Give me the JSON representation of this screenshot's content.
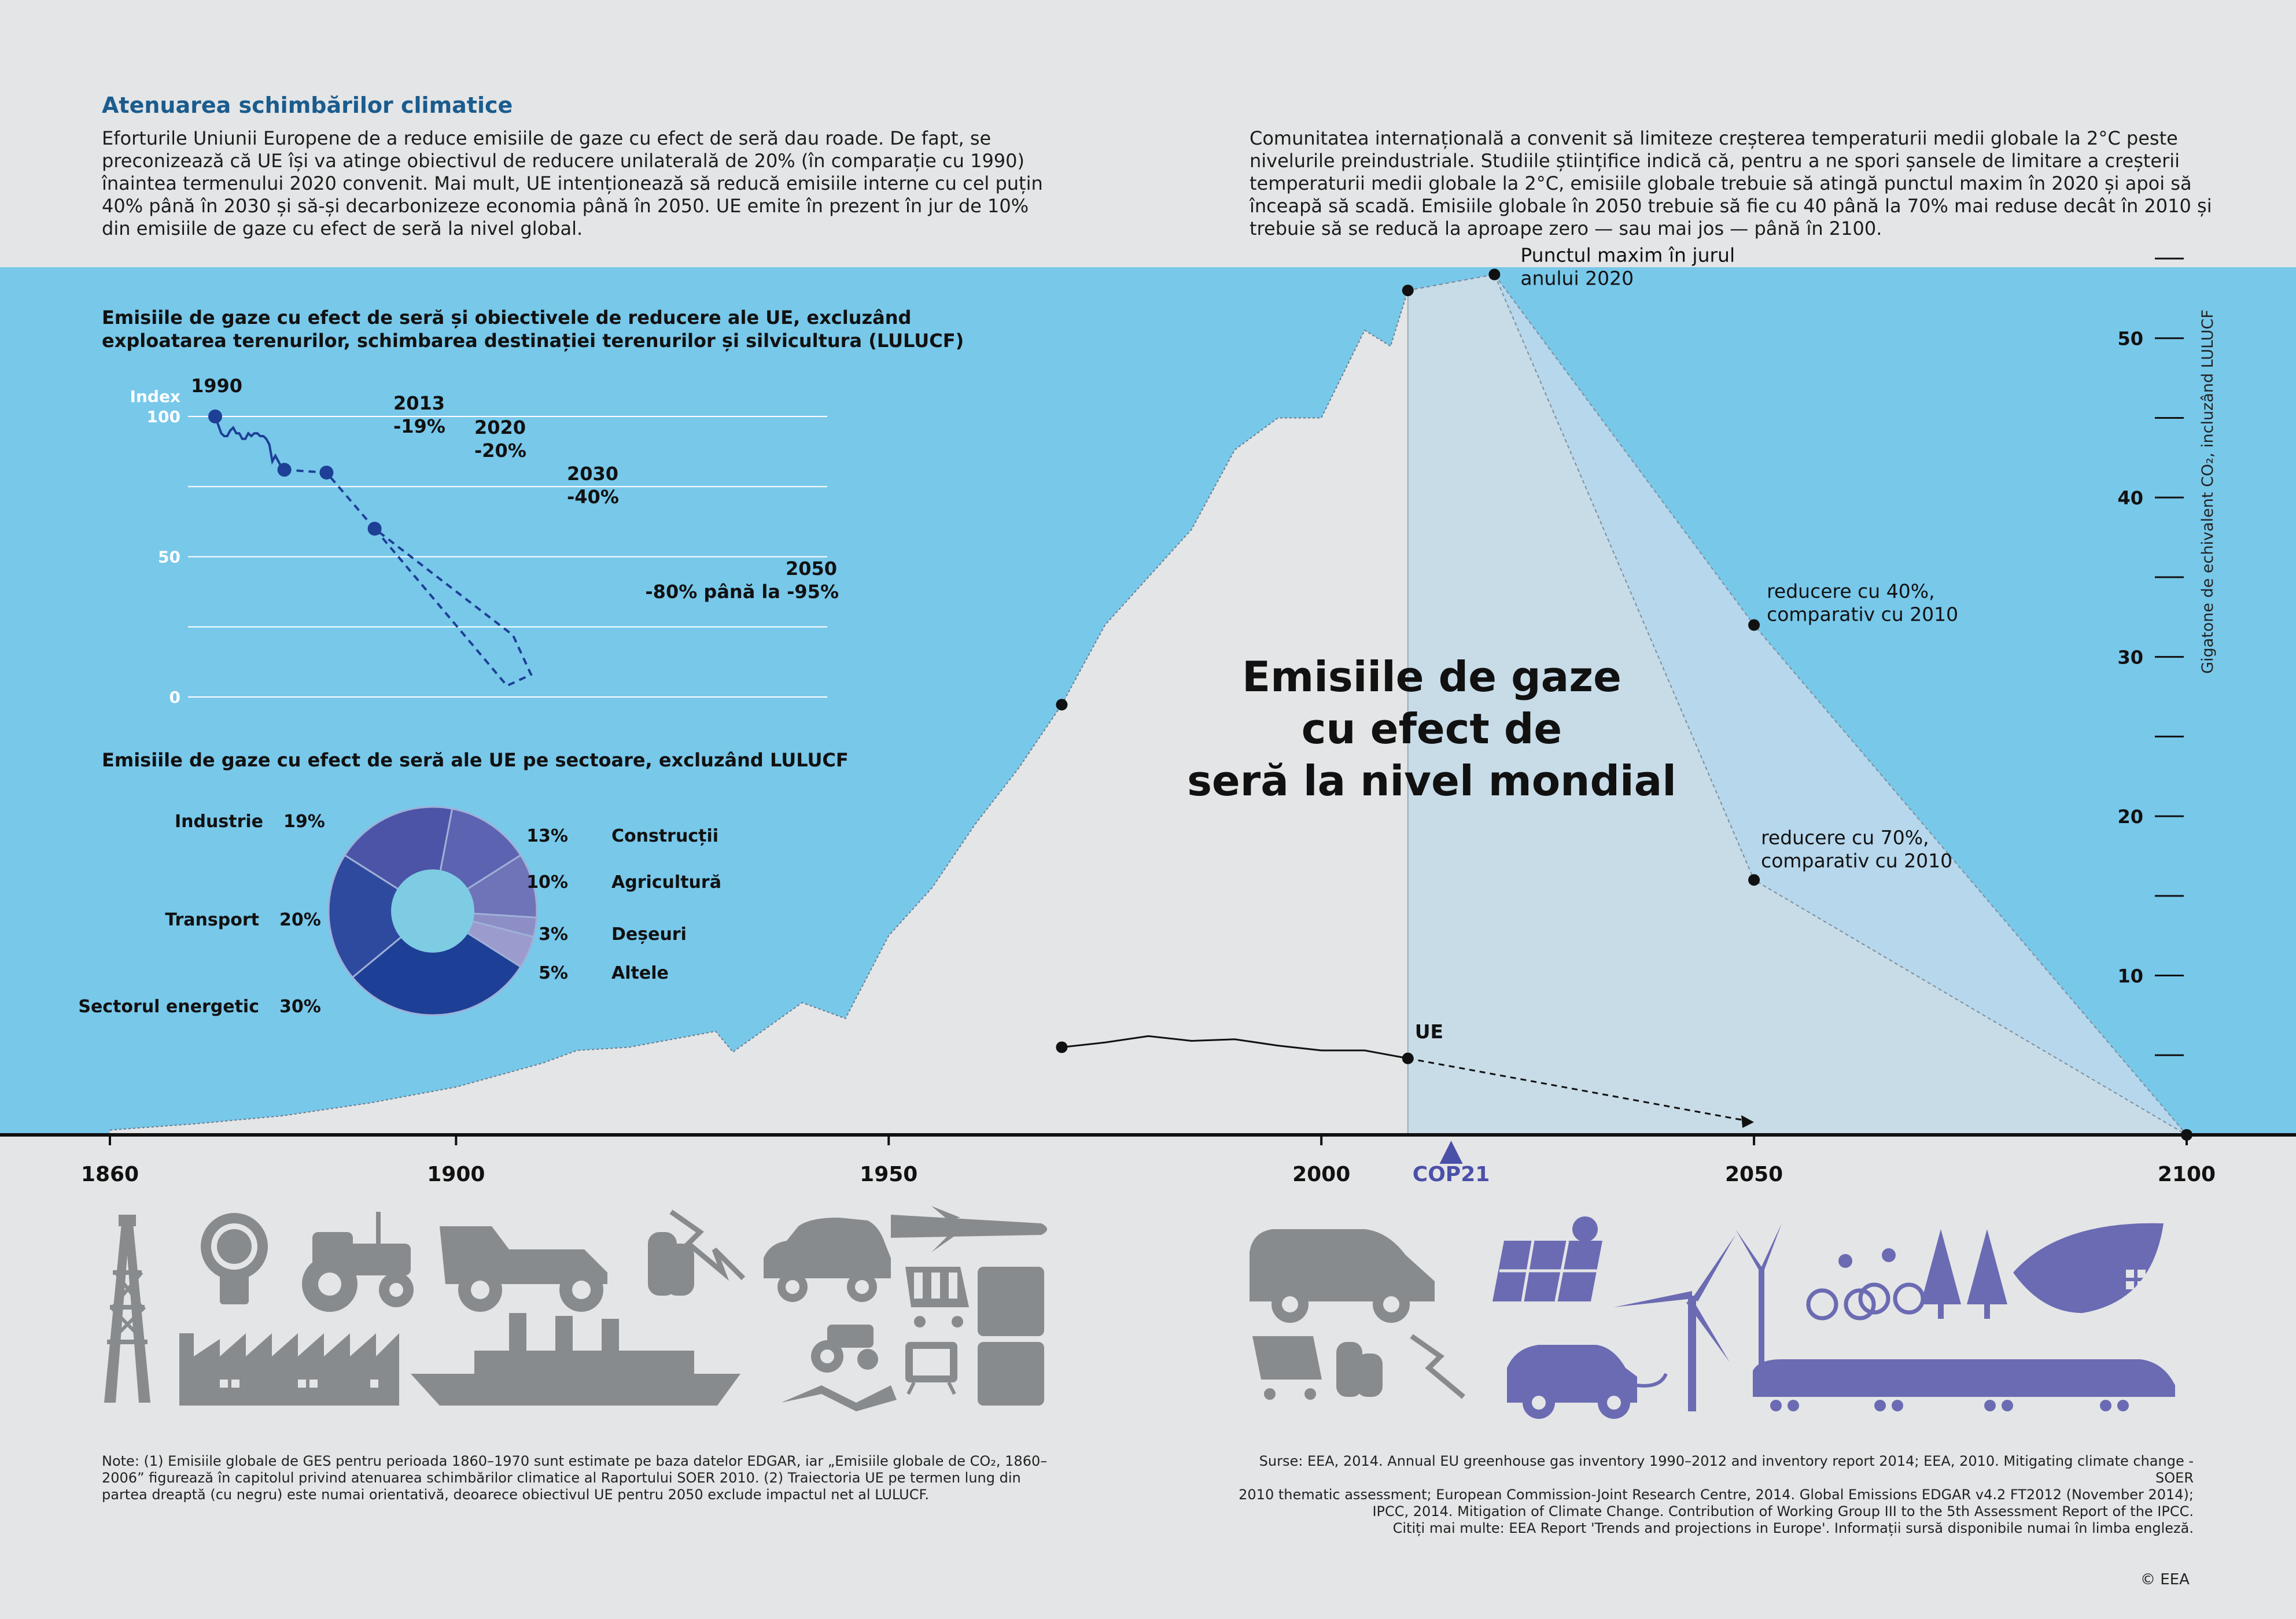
{
  "header": {
    "title": "Atenuarea schimbărilor climatice",
    "intro_left": "Eforturile Uniunii Europene de a reduce emisiile de gaze cu efect de seră dau roade. De fapt, se preconizează că UE își va atinge obiectivul de reducere unilaterală de 20% (în comparație cu 1990) înaintea termenului 2020 convenit. Mai mult, UE intenționează să reducă emisiile interne cu cel puțin 40% până în 2030 și să-și decarbonizeze economia până în 2050. UE emite în prezent în jur de 10% din emisiile de gaze cu efect de seră la nivel global.",
    "intro_right": "Comunitatea internațională a convenit să limiteze creșterea temperaturii medii globale la 2°C peste nivelurile preindustriale. Studiile științifice indică că, pentru a ne spori șansele de limitare a creșterii temperaturii medii globale la 2°C, emisiile globale trebuie să atingă punctul maxim în 2020 și apoi să înceapă să scadă. Emisiile globale în 2050 trebuie să fie cu 40 până la 70% mai reduse decât în 2010 și trebuie să se reducă la aproape zero — sau mai jos — până în 2100."
  },
  "colors": {
    "sky": "#78c8ea",
    "area": "#e4e5e6",
    "projection": "#c8dce8",
    "accent_blue": "#1a5c8e",
    "eu_line": "#1e3f96",
    "cop_purple": "#4a4fa8",
    "icon_grey": "#888b8e",
    "icon_purple": "#6b6bb3"
  },
  "chart_data": [
    {
      "type": "area",
      "title": "Emisiile de gaze cu efect de seră la nivel mondial",
      "ylabel": "Gigatone de echivalent CO₂, incluzând LULUCF",
      "x_ticks": [
        1860,
        1900,
        1950,
        2000,
        2050,
        2100
      ],
      "y_ticks": [
        10,
        20,
        30,
        40,
        50
      ],
      "xlim": [
        1860,
        2100
      ],
      "ylim": [
        0,
        55
      ],
      "global_series": {
        "x": [
          1860,
          1870,
          1880,
          1890,
          1900,
          1910,
          1914,
          1920,
          1930,
          1932,
          1940,
          1945,
          1950,
          1955,
          1960,
          1965,
          1970,
          1975,
          1980,
          1985,
          1990,
          1995,
          2000,
          2005,
          2008,
          2010
        ],
        "y": [
          0.3,
          0.7,
          1.2,
          2.0,
          3.0,
          4.5,
          5.3,
          5.5,
          6.5,
          5.2,
          8.3,
          7.3,
          12.5,
          15.5,
          19.5,
          23.0,
          27.0,
          32.0,
          35.0,
          38.0,
          43.0,
          45.0,
          45.0,
          50.5,
          49.5,
          53.0
        ]
      },
      "projection_2100": {
        "x": [
          2010,
          2020,
          2050,
          2100
        ],
        "y_high": [
          53,
          54,
          32,
          0
        ],
        "y_low": [
          53,
          54,
          16,
          0
        ]
      },
      "eu_series": {
        "x": [
          1970,
          1975,
          1980,
          1985,
          1990,
          1995,
          2000,
          2005,
          2010,
          2050
        ],
        "y": [
          5.5,
          5.8,
          6.2,
          5.9,
          6.0,
          5.6,
          5.3,
          5.3,
          4.8,
          0.8
        ]
      },
      "annotations": [
        {
          "x": 2020,
          "y": 54,
          "text": "Punctul maxim în jurul anului 2020"
        },
        {
          "x": 2050,
          "y": 32,
          "text": "reducere cu 40%, comparativ cu 2010"
        },
        {
          "x": 2050,
          "y": 16,
          "text": "reducere cu 70%, comparativ cu 2010"
        },
        {
          "x": 2010,
          "y": 4.8,
          "text": "UE"
        },
        {
          "x": 2015,
          "y": 0,
          "text": "COP21"
        }
      ]
    },
    {
      "type": "line",
      "title": "Emisiile de gaze cu efect de seră și obiectivele de reducere ale UE, excluzând exploatarea terenurilor, schimbarea destinației terenurilor și silvicultura (LULUCF)",
      "ylabel": "Index",
      "y_ticks": [
        0,
        50,
        100
      ],
      "ylim": [
        0,
        100
      ],
      "history": {
        "x": [
          1990,
          1991,
          1992,
          1993,
          1994,
          1995,
          1996,
          1997,
          1998,
          1999,
          2000,
          2001,
          2002,
          2003,
          2004,
          2005,
          2006,
          2007,
          2008,
          2009,
          2010,
          2011,
          2012,
          2013
        ],
        "y": [
          100,
          97,
          94,
          93,
          93,
          95,
          96,
          94,
          94,
          92,
          92,
          94,
          93,
          94,
          94,
          93,
          93,
          92,
          90,
          84,
          86,
          84,
          82,
          81
        ]
      },
      "milestones": [
        {
          "year": "1990",
          "value": 100,
          "label": ""
        },
        {
          "year": "2013",
          "value": 81,
          "label": "-19%"
        },
        {
          "year": "2020",
          "value": 80,
          "label": "-20%"
        },
        {
          "year": "2030",
          "value": 60,
          "label": "-40%"
        },
        {
          "year": "2050",
          "value": 12,
          "label": "-80% până la -95%"
        }
      ]
    },
    {
      "type": "pie",
      "title": "Emisiile de gaze cu efect de seră ale UE pe sectoare, excluzând LULUCF",
      "slices": [
        {
          "name": "Sectorul energetic",
          "value": 30,
          "label": "30%",
          "color": "#1e3f96"
        },
        {
          "name": "Transport",
          "value": 20,
          "label": "20%",
          "color": "#2e4a9e"
        },
        {
          "name": "Industrie",
          "value": 19,
          "label": "19%",
          "color": "#4b54a6"
        },
        {
          "name": "Construcții",
          "value": 13,
          "label": "13%",
          "color": "#5c63b0"
        },
        {
          "name": "Agricultură",
          "value": 10,
          "label": "10%",
          "color": "#6f73b8"
        },
        {
          "name": "Deșeuri",
          "value": 3,
          "label": "3%",
          "color": "#8d8ec6"
        },
        {
          "name": "Altele",
          "value": 5,
          "label": "5%",
          "color": "#9b9ccd"
        }
      ]
    }
  ],
  "icons": {
    "past": [
      "oil-derrick-icon",
      "light-bulb-icon",
      "tractor-icon",
      "vintage-car-icon",
      "coins-icon",
      "airplane-icon",
      "car-icon",
      "shopping-cart-icon",
      "fridge-icon",
      "factory-icon",
      "ship-icon",
      "farming-icon",
      "tv-icon"
    ],
    "future": [
      "car-icon",
      "solar-panel-icon",
      "wind-turbine-icon",
      "cyclists-icon",
      "trees-icon",
      "eco-house-icon",
      "shopping-cart-icon",
      "coins-icon",
      "electric-car-icon",
      "train-icon"
    ]
  },
  "footer": {
    "note": "Note: (1) Emisiile globale de GES pentru perioada 1860–1970 sunt estimate pe baza datelor EDGAR, iar „Emisiile globale de CO₂, 1860–2006” figurează în capitolul privind atenuarea schimbărilor climatice al Raportului SOER 2010. (2) Traiectoria UE pe termen lung din partea dreaptă (cu negru) este numai orientativă, deoarece obiectivul UE pentru 2050 exclude impactul net al LULUCF.",
    "sources_lines": [
      "Surse: EEA, 2014. Annual EU greenhouse gas inventory 1990–2012 and inventory report 2014; EEA, 2010. Mitigating climate change - SOER",
      "2010 thematic assessment; European Commission-Joint Research Centre, 2014. Global Emissions EDGAR v4.2 FT2012 (November 2014);",
      "IPCC, 2014. Mitigation of Climate Change. Contribution of Working Group III to the 5th Assessment Report of the IPCC.",
      "Citiți mai multe: EEA Report 'Trends and projections in Europe'. Informații sursă disponibile numai în limba engleză."
    ],
    "copyright": "© EEA"
  }
}
